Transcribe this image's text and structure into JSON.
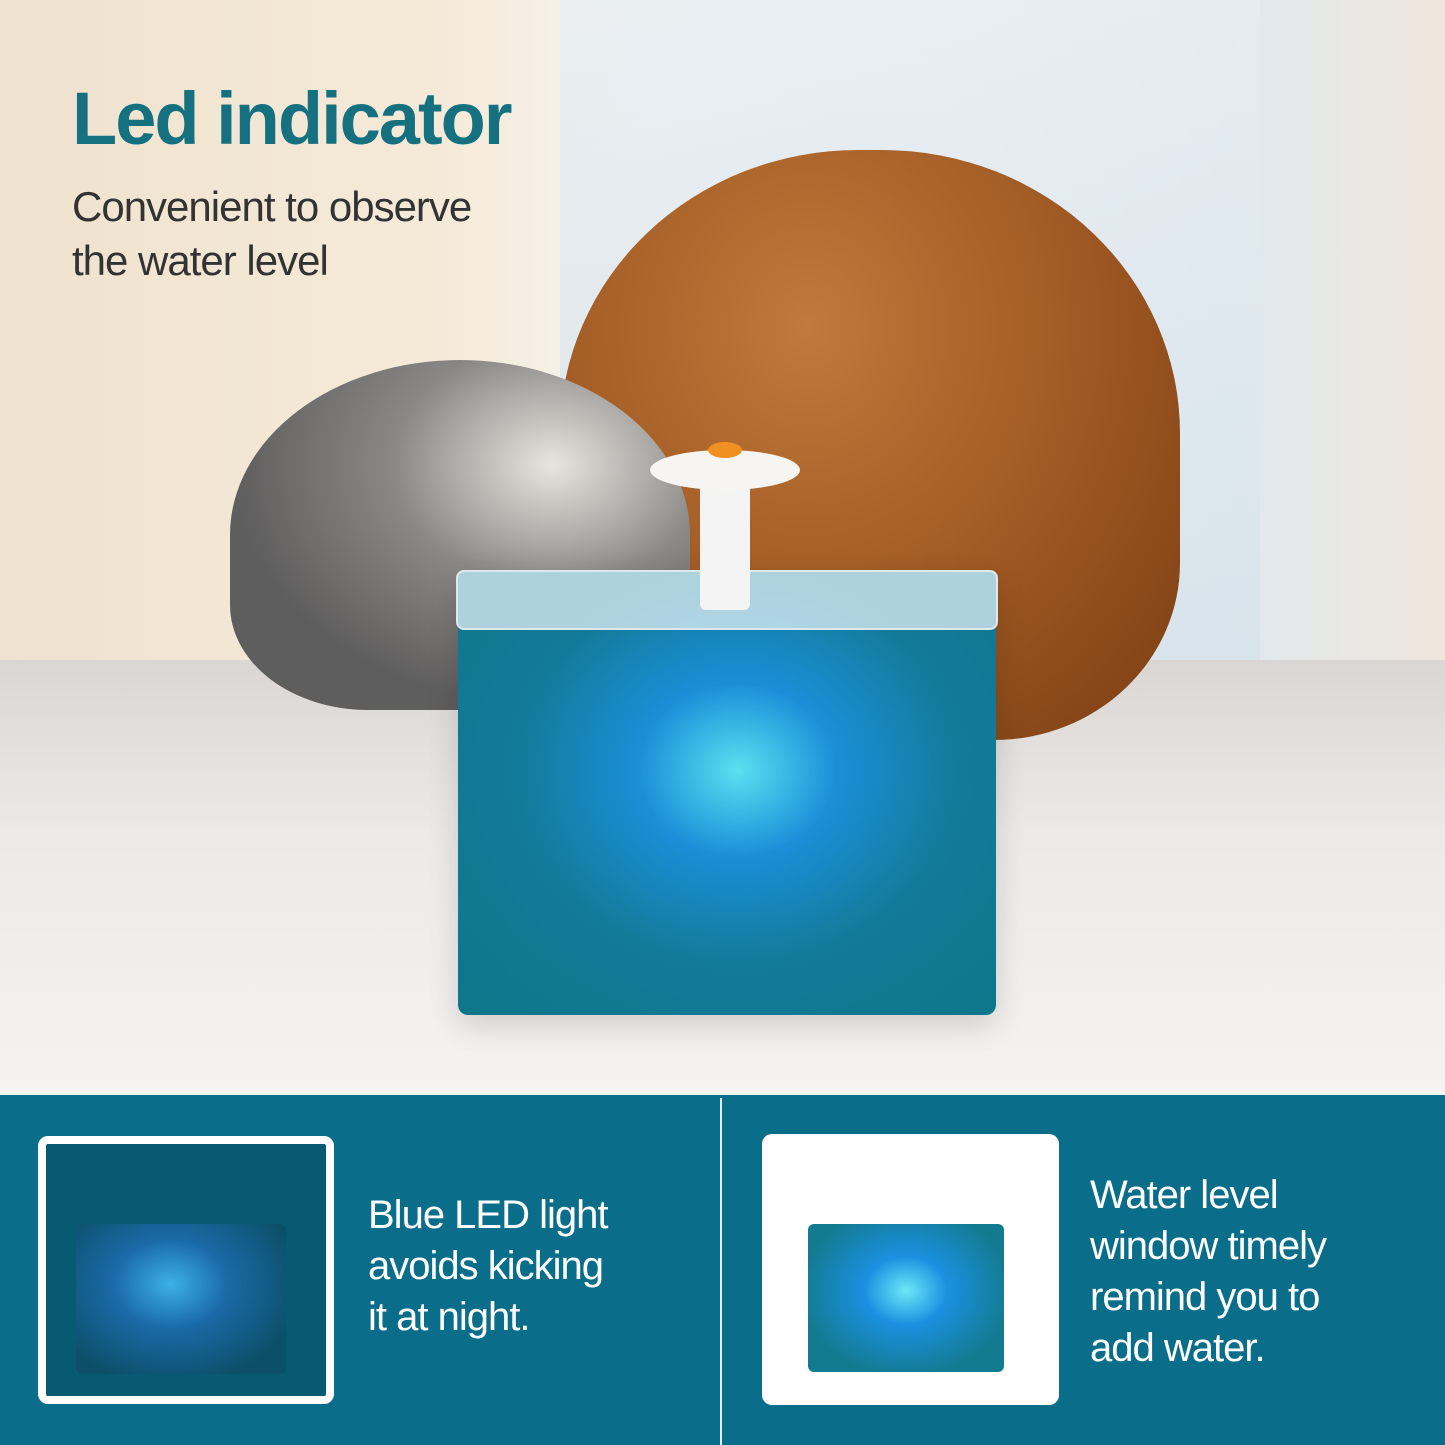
{
  "hero": {
    "title": "Led indicator",
    "subtitle_line1": "Convenient to observe",
    "subtitle_line2": "the water level"
  },
  "features": [
    {
      "line1": "Blue LED light",
      "line2": "avoids kicking",
      "line3": "it at night."
    },
    {
      "line1": "Water level",
      "line2": "window timely",
      "line3": "remind you to",
      "line4": "add water."
    }
  ],
  "colors": {
    "title": "#15707f",
    "panel": "#0a6e8a",
    "led": "#1a90e0"
  }
}
